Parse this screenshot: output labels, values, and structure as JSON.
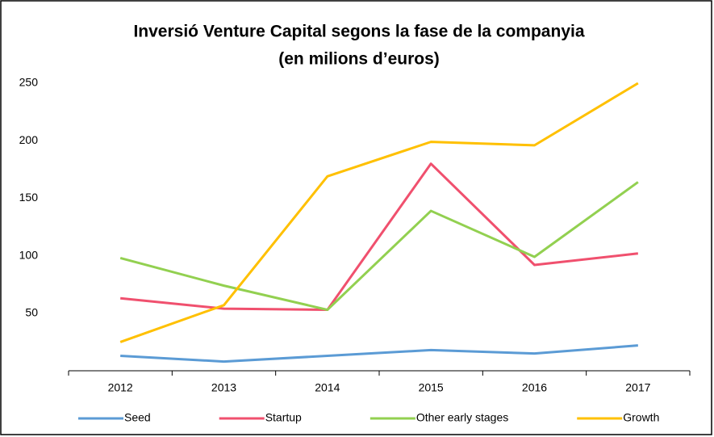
{
  "chart_data": {
    "type": "line",
    "title": "Inversió Venture Capital segons la fase de la companyia",
    "subtitle": "(en milions d’euros)",
    "categories": [
      "2012",
      "2013",
      "2014",
      "2015",
      "2016",
      "2017"
    ],
    "series": [
      {
        "name": "Seed",
        "color": "#5b9bd5",
        "values": [
          13,
          8,
          13,
          18,
          15,
          22
        ]
      },
      {
        "name": "Startup",
        "color": "#f0506e",
        "values": [
          63,
          54,
          53,
          180,
          92,
          102
        ]
      },
      {
        "name": "Other early stages",
        "color": "#92d050",
        "values": [
          98,
          74,
          53,
          139,
          99,
          164
        ]
      },
      {
        "name": "Growth",
        "color": "#ffc000",
        "values": [
          25,
          57,
          169,
          199,
          196,
          250
        ]
      }
    ],
    "ylim": [
      0,
      250
    ],
    "yticks": [
      50,
      100,
      150,
      200,
      250
    ],
    "grid": false,
    "legend": "bottom"
  }
}
